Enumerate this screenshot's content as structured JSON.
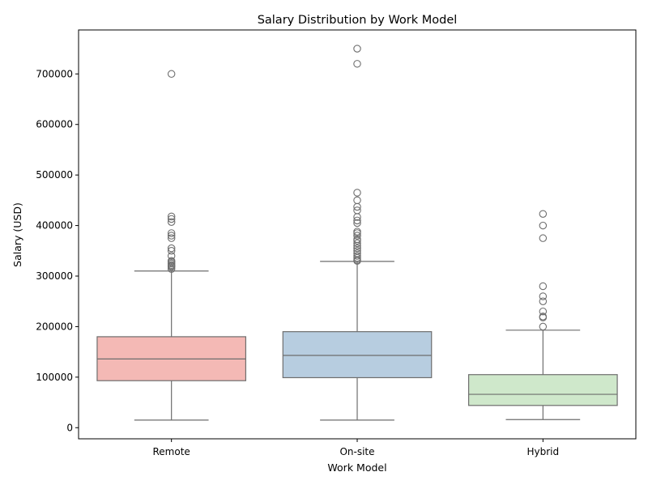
{
  "chart_data": {
    "type": "box",
    "title": "Salary Distribution by Work Model",
    "xlabel": "Work Model",
    "ylabel": "Salary (USD)",
    "ylim": [
      -22000,
      787000
    ],
    "yticks": [
      0,
      100000,
      200000,
      300000,
      400000,
      500000,
      600000,
      700000
    ],
    "grid": false,
    "legend": "none",
    "categories": [
      "Remote",
      "On-site",
      "Hybrid"
    ],
    "boxes": [
      {
        "category": "Remote",
        "color": "#f4b9b5",
        "whisker_low": 15000,
        "q1": 93000,
        "median": 136000,
        "q3": 180000,
        "whisker_high": 310000,
        "outliers": [
          314000,
          318000,
          320000,
          322000,
          325000,
          328000,
          330000,
          340000,
          350000,
          355000,
          375000,
          380000,
          385000,
          407000,
          413000,
          418000,
          700000
        ]
      },
      {
        "category": "On-site",
        "color": "#b7cde0",
        "whisker_low": 15000,
        "q1": 99000,
        "median": 143000,
        "q3": 190000,
        "whisker_high": 329000,
        "outliers": [
          330000,
          332000,
          336000,
          340000,
          345000,
          350000,
          355000,
          360000,
          365000,
          370000,
          373000,
          380000,
          385000,
          388000,
          405000,
          410000,
          417000,
          430000,
          437000,
          450000,
          465000,
          720000,
          750000
        ]
      },
      {
        "category": "Hybrid",
        "color": "#cfe8cb",
        "whisker_low": 16000,
        "q1": 44000,
        "median": 66000,
        "q3": 105000,
        "whisker_high": 193000,
        "outliers": [
          200000,
          218000,
          220000,
          230000,
          250000,
          260000,
          280000,
          375000,
          400000,
          423000
        ]
      }
    ]
  },
  "style": {
    "line_color": "#6e6e6e",
    "outlier_edge": "#6e6e6e"
  }
}
